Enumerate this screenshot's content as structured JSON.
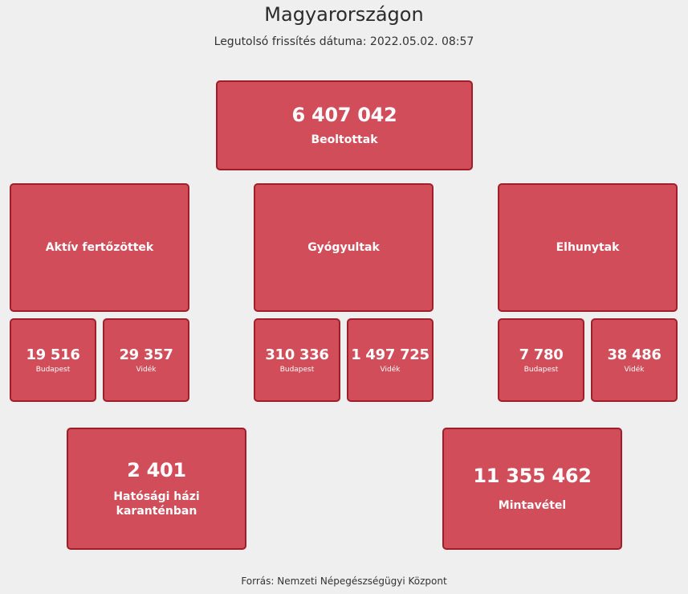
{
  "header": {
    "title": "Magyarországon",
    "updated": "Legutolsó frissítés dátuma: 2022.05.02. 08:57"
  },
  "vaccinated": {
    "value": "6 407 042",
    "label": "Beoltottak"
  },
  "active": {
    "label": "Aktív fertőzöttek",
    "budapest": {
      "value": "19 516",
      "label": "Budapest"
    },
    "countryside": {
      "value": "29 357",
      "label": "Vidék"
    }
  },
  "recovered": {
    "label": "Gyógyultak",
    "budapest": {
      "value": "310 336",
      "label": "Budapest"
    },
    "countryside": {
      "value": "1 497 725",
      "label": "Vidék"
    }
  },
  "deceased": {
    "label": "Elhunytak",
    "budapest": {
      "value": "7 780",
      "label": "Budapest"
    },
    "countryside": {
      "value": "38 486",
      "label": "Vidék"
    }
  },
  "quarantine": {
    "value": "2 401",
    "label": "Hatósági házi karanténban"
  },
  "samples": {
    "value": "11 355 462",
    "label": "Mintavétel"
  },
  "footer": {
    "source": "Forrás: Nemzeti Népegészségügyi Központ"
  },
  "colors": {
    "box_fill": "#d14d59",
    "box_border": "#9e1f2a",
    "background": "#efefef"
  }
}
